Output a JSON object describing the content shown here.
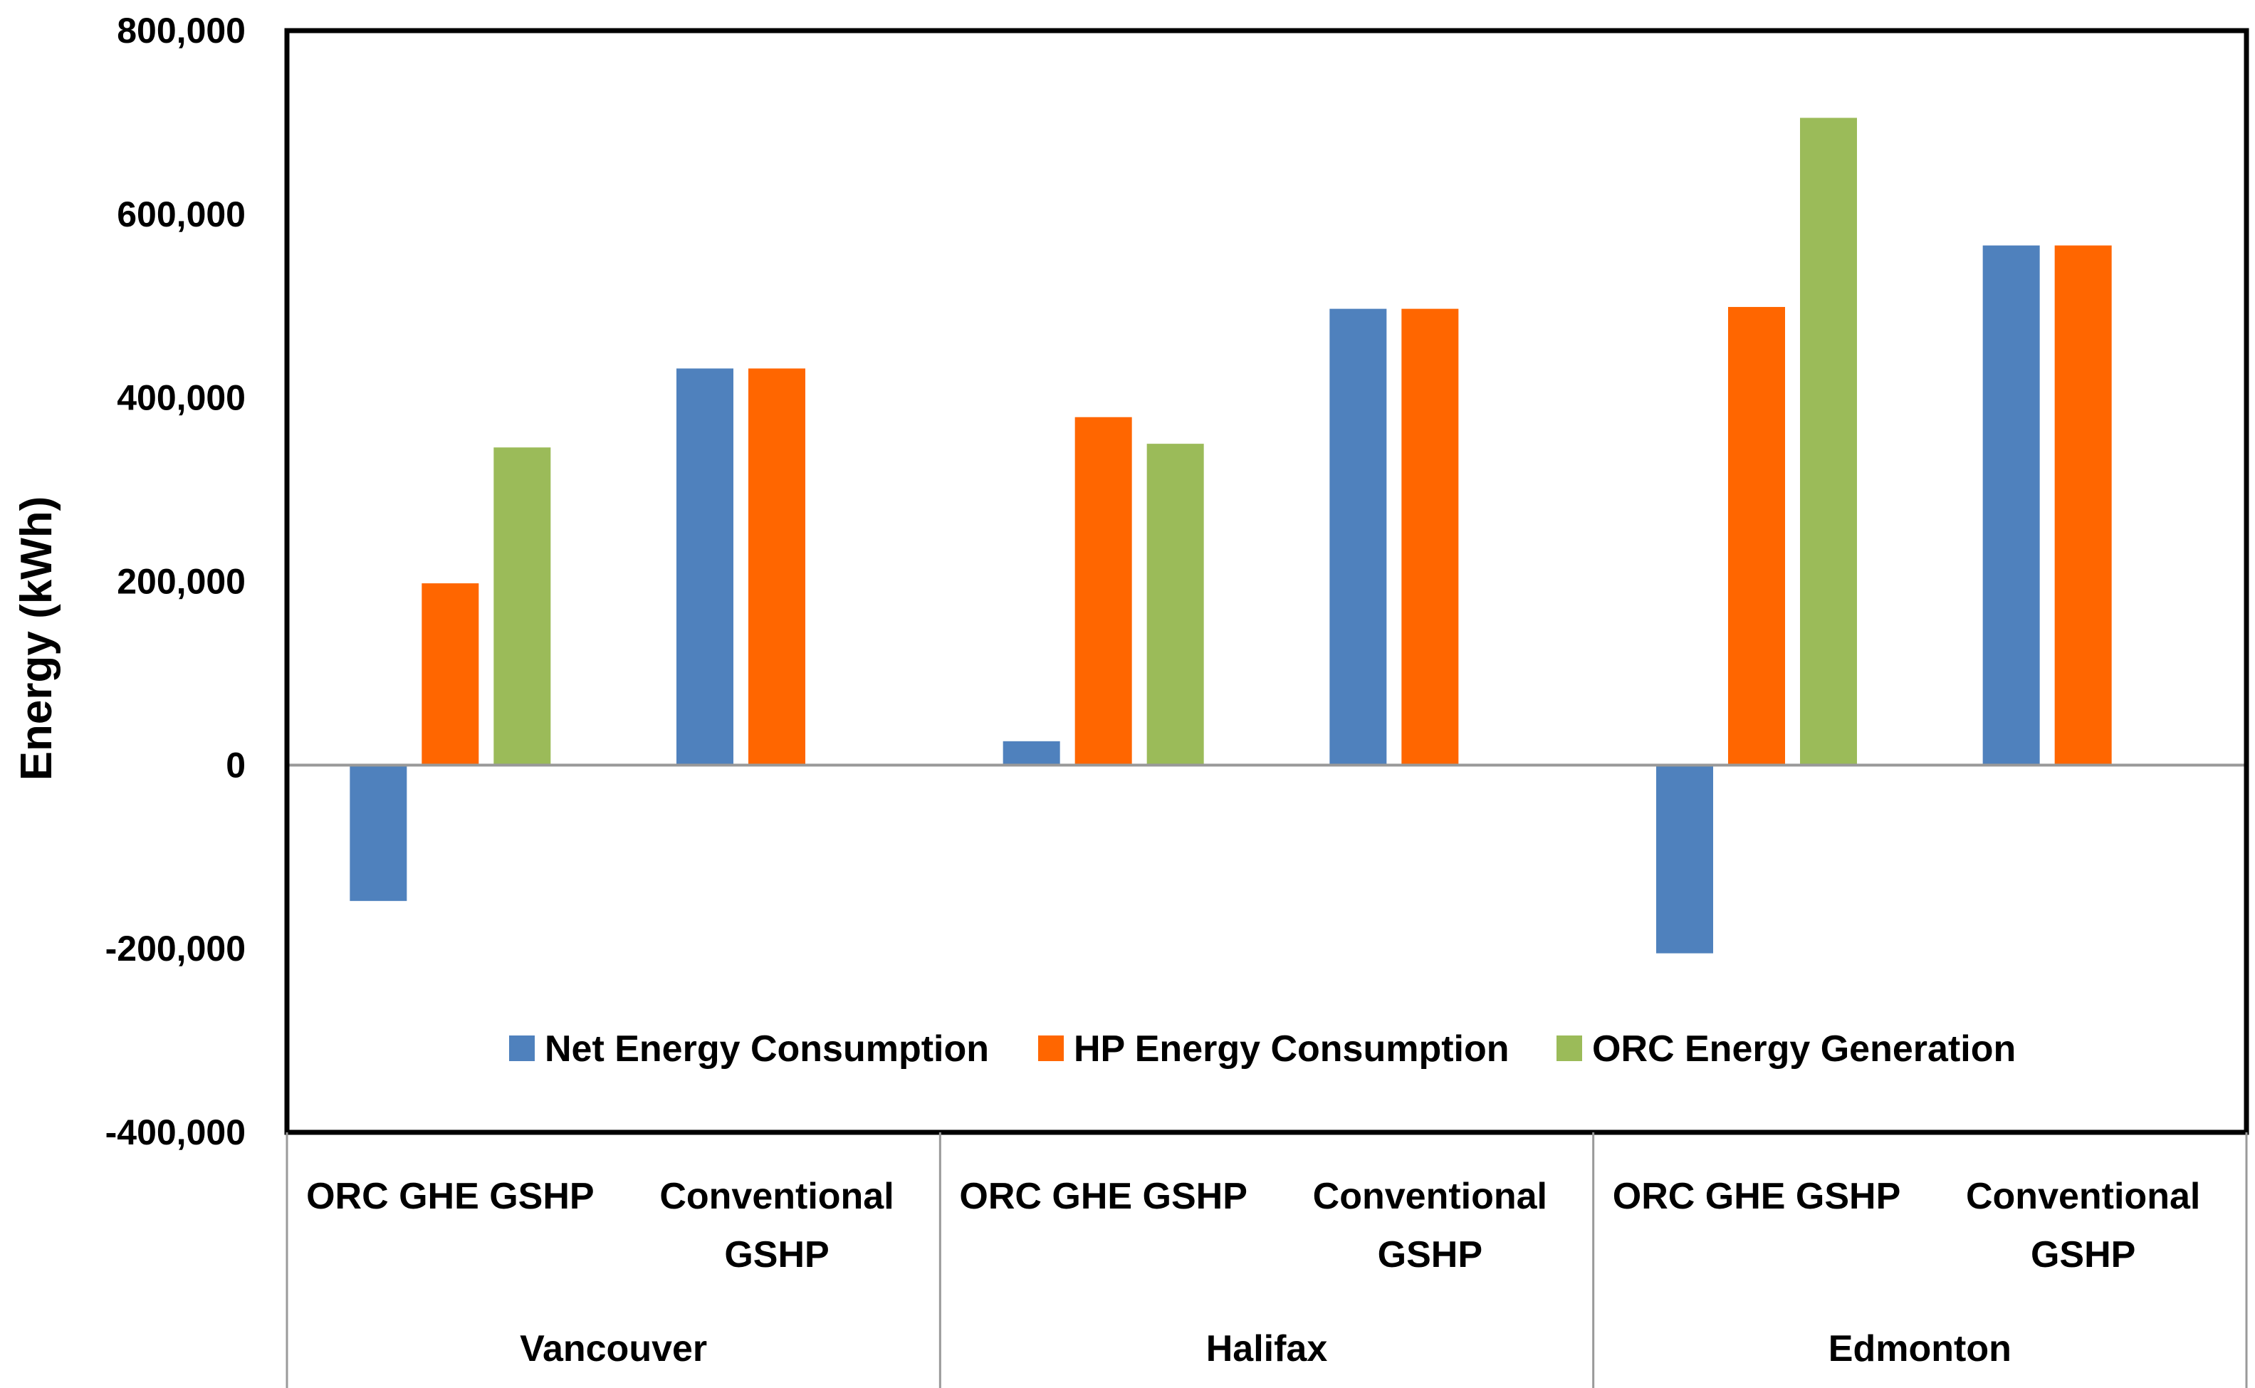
{
  "chart_data": {
    "type": "bar",
    "title": "",
    "xlabel": "",
    "ylabel": "Energy  (kWh)",
    "ylim": [
      -400000,
      800000
    ],
    "yticks": [
      -400000,
      -200000,
      0,
      200000,
      400000,
      600000,
      800000
    ],
    "ytick_labels": [
      "-400,000",
      "-200,000",
      "0",
      "200,000",
      "400,000",
      "600,000",
      "800,000"
    ],
    "grid": false,
    "legend_position": "bottom-inside",
    "groups": [
      {
        "name": "Vancouver",
        "categories": [
          "ORC GHE GSHP",
          "Conventional GSHP"
        ]
      },
      {
        "name": "Halifax",
        "categories": [
          "ORC GHE GSHP",
          "Conventional GSHP"
        ]
      },
      {
        "name": "Edmonton",
        "categories": [
          "ORC GHE GSHP",
          "Conventional GSHP"
        ]
      }
    ],
    "category_labels": [
      [
        "ORC GHE GSHP"
      ],
      [
        "Conventional",
        "GSHP"
      ]
    ],
    "categories": [
      "Vancouver ORC GHE GSHP",
      "Vancouver Conventional GSHP",
      "Halifax ORC GHE GSHP",
      "Halifax Conventional GSHP",
      "Edmonton ORC GHE GSHP",
      "Edmonton Conventional GSHP"
    ],
    "series": [
      {
        "name": "Net Energy Consumption",
        "color": "#4F81BD",
        "values": [
          -148000,
          432000,
          26000,
          497000,
          -205000,
          566000
        ]
      },
      {
        "name": "HP Energy Consumption",
        "color": "#FF6600",
        "values": [
          198000,
          432000,
          379000,
          497000,
          499000,
          566000
        ]
      },
      {
        "name": "ORC Energy Generation",
        "color": "#9BBB59",
        "values": [
          346000,
          null,
          350000,
          null,
          705000,
          null
        ]
      }
    ]
  }
}
